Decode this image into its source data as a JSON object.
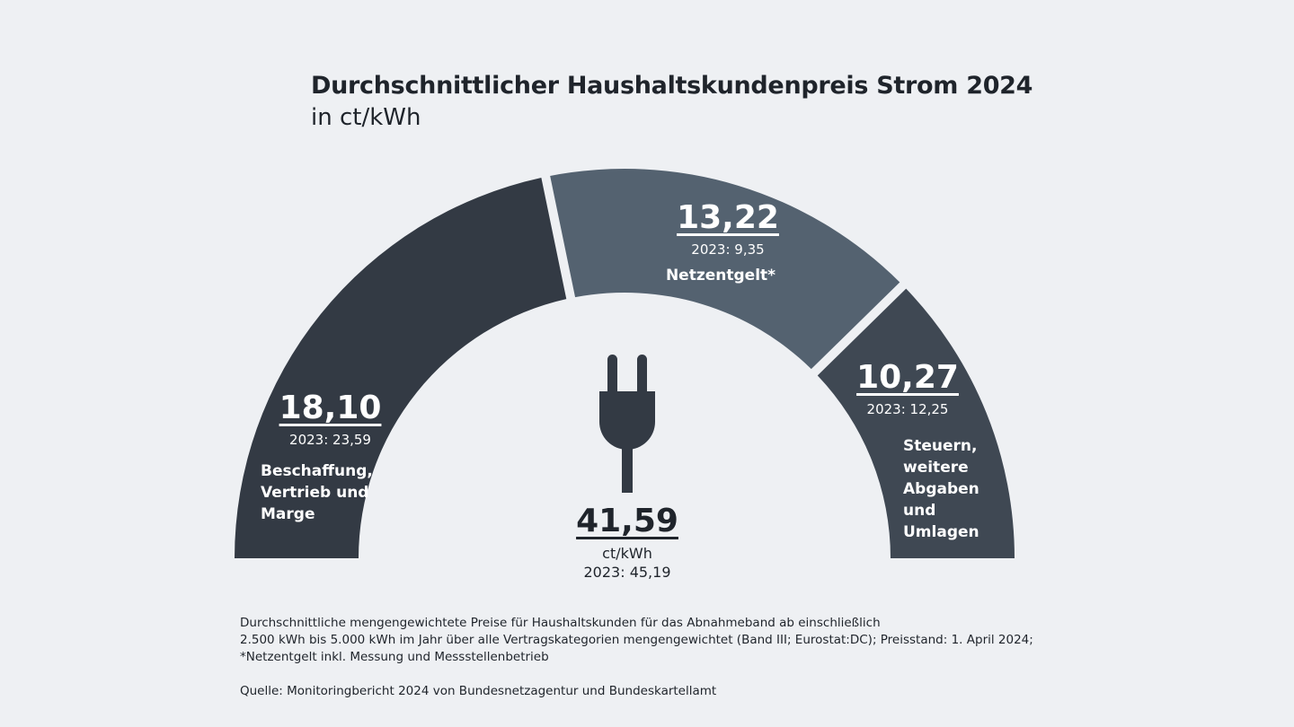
{
  "chart_data": {
    "type": "pie",
    "variant": "semi-donut",
    "title": "Durchschnittlicher Haushaltskundenpreis Strom 2024",
    "subtitle": "in ct/kWh",
    "categories": [
      "Beschaffung, Vertrieb und Marge",
      "Netzentgelt*",
      "Steuern, weitere Abgaben und Umlagen"
    ],
    "values": [
      18.1,
      13.22,
      10.27
    ],
    "value_labels": [
      "18,10",
      "13,22",
      "10,27"
    ],
    "previous_labels": [
      "2023: 23,59",
      "2023: 9,35",
      "2023: 12,25"
    ],
    "colors": [
      "#333a44",
      "#546270",
      "#3f4853"
    ],
    "total": {
      "value": 41.59,
      "label": "41,59",
      "unit": "ct/kWh",
      "previous": "2023: 45,19"
    }
  },
  "labels": {
    "seg0_lines": [
      "Beschaffung,",
      "Vertrieb und",
      "Marge"
    ],
    "seg1_lines": [
      "Netzentgelt*"
    ],
    "seg2_lines": [
      "Steuern,",
      "weitere",
      "Abgaben",
      "und Umlagen"
    ]
  },
  "icon": "plug-icon",
  "notes": [
    "Durchschnittliche mengengewichtete Preise für Haushaltskunden für das Abnahmeband ab einschließlich",
    "2.500 kWh bis 5.000 kWh im Jahr über alle Vertragskategorien mengengewichtet (Band III; Eurostat:DC); Preisstand: 1. April 2024;",
    "*Netzentgelt inkl. Messung und Messstellenbetrieb"
  ],
  "source": "Quelle: Monitoringbericht 2024 von Bundesnetzagentur und Bundeskartellamt"
}
